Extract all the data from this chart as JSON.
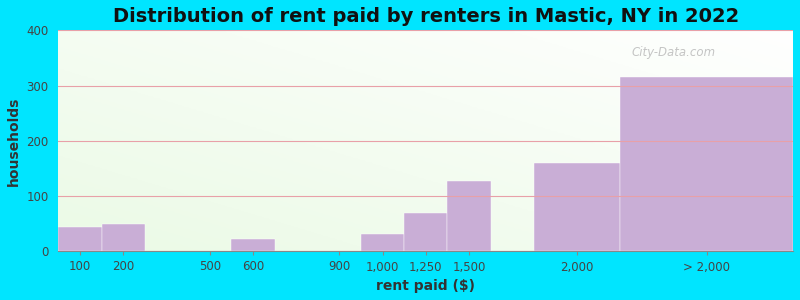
{
  "title": "Distribution of rent paid by renters in Mastic, NY in 2022",
  "xlabel": "rent paid ($)",
  "ylabel": "households",
  "bar_labels": [
    "100",
    "200",
    "500",
    "600",
    "900",
    "1,000",
    "1,250",
    "1,500",
    "2,000",
    "> 2,000"
  ],
  "bar_lefts": [
    0,
    1,
    3,
    4,
    6,
    7,
    8,
    9,
    11,
    13
  ],
  "bar_widths": [
    1,
    1,
    1,
    1,
    1,
    1,
    1,
    1,
    2,
    4
  ],
  "bar_heights": [
    44,
    50,
    0,
    22,
    0,
    32,
    70,
    128,
    160,
    315
  ],
  "bar_color": "#c9aed6",
  "background_outer": "#00e5ff",
  "ylim": [
    0,
    400
  ],
  "yticks": [
    0,
    100,
    200,
    300,
    400
  ],
  "grid_color": "#e8a0a8",
  "title_fontsize": 14,
  "axis_label_fontsize": 10,
  "tick_fontsize": 8.5,
  "watermark_text": "City-Data.com"
}
